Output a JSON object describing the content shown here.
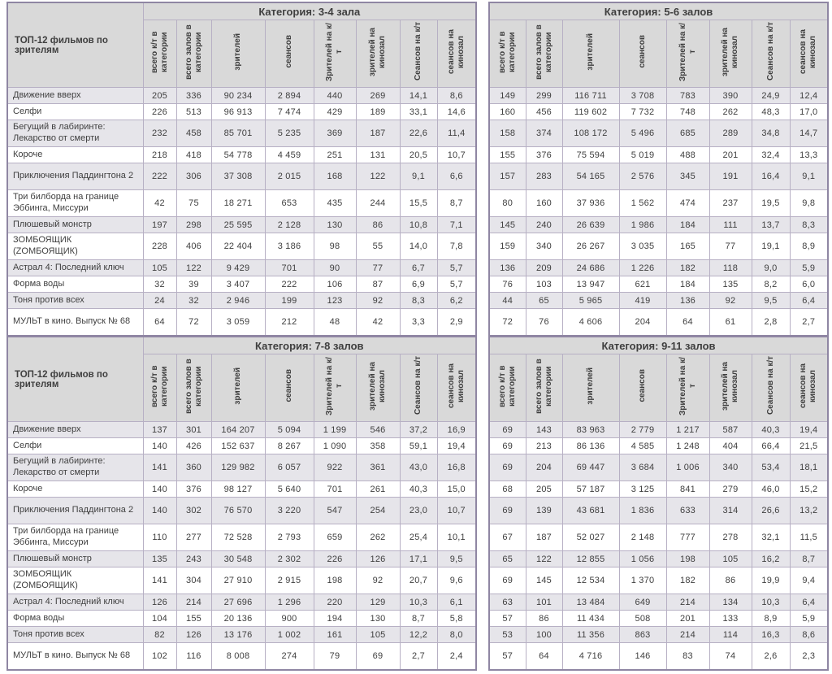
{
  "page": {
    "row_header_label": "ТОП-12 фильмов по зрителям",
    "column_headers": [
      "всего к/т в категории",
      "всего залов в категории",
      "зрителей",
      "сеансов",
      "Зрителей на к/т",
      "зрителей на кинозал",
      "Сеансов на к/т",
      "сеансов на кинозал"
    ],
    "movies": [
      "Движение вверх",
      "Селфи",
      "Бегущий в лабиринте: Лекарство от смерти",
      "Короче",
      "Приключения Паддингтона 2",
      "Три билборда на границе Эббинга, Миссури",
      "Плюшевый монстр",
      "ЗОМБОЯЩИК (ZОМБОЯЩИК)",
      "Астрал 4: Последний ключ",
      "Форма воды",
      "Тоня против всех",
      "МУЛЬТ в кино. Выпуск № 68"
    ],
    "tables": [
      {
        "id": "t1",
        "title": "Категория: 3-4 зала",
        "show_names": true,
        "rows": [
          [
            "205",
            "336",
            "90 234",
            "2 894",
            "440",
            "269",
            "14,1",
            "8,6"
          ],
          [
            "226",
            "513",
            "96 913",
            "7 474",
            "429",
            "189",
            "33,1",
            "14,6"
          ],
          [
            "232",
            "458",
            "85 701",
            "5 235",
            "369",
            "187",
            "22,6",
            "11,4"
          ],
          [
            "218",
            "418",
            "54 778",
            "4 459",
            "251",
            "131",
            "20,5",
            "10,7"
          ],
          [
            "222",
            "306",
            "37 308",
            "2 015",
            "168",
            "122",
            "9,1",
            "6,6"
          ],
          [
            "42",
            "75",
            "18 271",
            "653",
            "435",
            "244",
            "15,5",
            "8,7"
          ],
          [
            "197",
            "298",
            "25 595",
            "2 128",
            "130",
            "86",
            "10,8",
            "7,1"
          ],
          [
            "228",
            "406",
            "22 404",
            "3 186",
            "98",
            "55",
            "14,0",
            "7,8"
          ],
          [
            "105",
            "122",
            "9 429",
            "701",
            "90",
            "77",
            "6,7",
            "5,7"
          ],
          [
            "32",
            "39",
            "3 407",
            "222",
            "106",
            "87",
            "6,9",
            "5,7"
          ],
          [
            "24",
            "32",
            "2 946",
            "199",
            "123",
            "92",
            "8,3",
            "6,2"
          ],
          [
            "64",
            "72",
            "3 059",
            "212",
            "48",
            "42",
            "3,3",
            "2,9"
          ]
        ]
      },
      {
        "id": "t2",
        "title": "Категория: 5-6 залов",
        "show_names": false,
        "rows": [
          [
            "149",
            "299",
            "116 711",
            "3 708",
            "783",
            "390",
            "24,9",
            "12,4"
          ],
          [
            "160",
            "456",
            "119 602",
            "7 732",
            "748",
            "262",
            "48,3",
            "17,0"
          ],
          [
            "158",
            "374",
            "108 172",
            "5 496",
            "685",
            "289",
            "34,8",
            "14,7"
          ],
          [
            "155",
            "376",
            "75 594",
            "5 019",
            "488",
            "201",
            "32,4",
            "13,3"
          ],
          [
            "157",
            "283",
            "54 165",
            "2 576",
            "345",
            "191",
            "16,4",
            "9,1"
          ],
          [
            "80",
            "160",
            "37 936",
            "1 562",
            "474",
            "237",
            "19,5",
            "9,8"
          ],
          [
            "145",
            "240",
            "26 639",
            "1 986",
            "184",
            "111",
            "13,7",
            "8,3"
          ],
          [
            "159",
            "340",
            "26 267",
            "3 035",
            "165",
            "77",
            "19,1",
            "8,9"
          ],
          [
            "136",
            "209",
            "24 686",
            "1 226",
            "182",
            "118",
            "9,0",
            "5,9"
          ],
          [
            "76",
            "103",
            "13 947",
            "621",
            "184",
            "135",
            "8,2",
            "6,0"
          ],
          [
            "44",
            "65",
            "5 965",
            "419",
            "136",
            "92",
            "9,5",
            "6,4"
          ],
          [
            "72",
            "76",
            "4 606",
            "204",
            "64",
            "61",
            "2,8",
            "2,7"
          ]
        ]
      },
      {
        "id": "t3",
        "title": "Категория: 7-8 залов",
        "show_names": true,
        "rows": [
          [
            "137",
            "301",
            "164 207",
            "5 094",
            "1 199",
            "546",
            "37,2",
            "16,9"
          ],
          [
            "140",
            "426",
            "152 637",
            "8 267",
            "1 090",
            "358",
            "59,1",
            "19,4"
          ],
          [
            "141",
            "360",
            "129 982",
            "6 057",
            "922",
            "361",
            "43,0",
            "16,8"
          ],
          [
            "140",
            "376",
            "98 127",
            "5 640",
            "701",
            "261",
            "40,3",
            "15,0"
          ],
          [
            "140",
            "302",
            "76 570",
            "3 220",
            "547",
            "254",
            "23,0",
            "10,7"
          ],
          [
            "110",
            "277",
            "72 528",
            "2 793",
            "659",
            "262",
            "25,4",
            "10,1"
          ],
          [
            "135",
            "243",
            "30 548",
            "2 302",
            "226",
            "126",
            "17,1",
            "9,5"
          ],
          [
            "141",
            "304",
            "27 910",
            "2 915",
            "198",
            "92",
            "20,7",
            "9,6"
          ],
          [
            "126",
            "214",
            "27 696",
            "1 296",
            "220",
            "129",
            "10,3",
            "6,1"
          ],
          [
            "104",
            "155",
            "20 136",
            "900",
            "194",
            "130",
            "8,7",
            "5,8"
          ],
          [
            "82",
            "126",
            "13 176",
            "1 002",
            "161",
            "105",
            "12,2",
            "8,0"
          ],
          [
            "102",
            "116",
            "8 008",
            "274",
            "79",
            "69",
            "2,7",
            "2,4"
          ]
        ]
      },
      {
        "id": "t4",
        "title": "Категория: 9-11 залов",
        "show_names": false,
        "rows": [
          [
            "69",
            "143",
            "83 963",
            "2 779",
            "1 217",
            "587",
            "40,3",
            "19,4"
          ],
          [
            "69",
            "213",
            "86 136",
            "4 585",
            "1 248",
            "404",
            "66,4",
            "21,5"
          ],
          [
            "69",
            "204",
            "69 447",
            "3 684",
            "1 006",
            "340",
            "53,4",
            "18,1"
          ],
          [
            "68",
            "205",
            "57 187",
            "3 125",
            "841",
            "279",
            "46,0",
            "15,2"
          ],
          [
            "69",
            "139",
            "43 681",
            "1 836",
            "633",
            "314",
            "26,6",
            "13,2"
          ],
          [
            "67",
            "187",
            "52 027",
            "2 148",
            "777",
            "278",
            "32,1",
            "11,5"
          ],
          [
            "65",
            "122",
            "12 855",
            "1 056",
            "198",
            "105",
            "16,2",
            "8,7"
          ],
          [
            "69",
            "145",
            "12 534",
            "1 370",
            "182",
            "86",
            "19,9",
            "9,4"
          ],
          [
            "63",
            "101",
            "13 484",
            "649",
            "214",
            "134",
            "10,3",
            "6,4"
          ],
          [
            "57",
            "86",
            "11 434",
            "508",
            "201",
            "133",
            "8,9",
            "5,9"
          ],
          [
            "53",
            "100",
            "11 356",
            "863",
            "214",
            "114",
            "16,3",
            "8,6"
          ],
          [
            "57",
            "64",
            "4 716",
            "146",
            "83",
            "74",
            "2,6",
            "2,3"
          ]
        ]
      }
    ],
    "colors": {
      "title_purple": "#7a3b99",
      "header_bg": "#d9d9d9",
      "stripe_bg": "#e6e5ea",
      "grid_border": "#b7b0c4",
      "outer_border": "#8f86a3",
      "text": "#3f3f3f"
    }
  }
}
